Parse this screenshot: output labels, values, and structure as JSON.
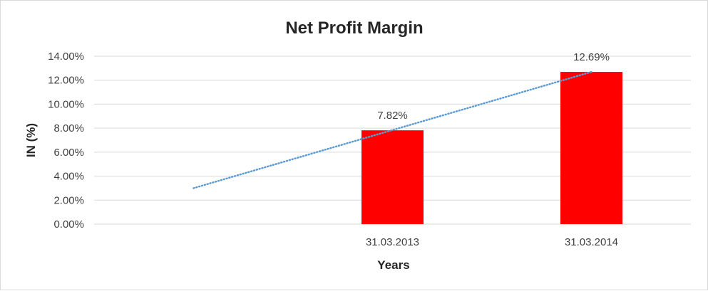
{
  "chart_data": {
    "type": "bar",
    "title": "Net Profit Margin",
    "xlabel": "Years",
    "ylabel": "IN (%)",
    "categories": [
      "",
      "31.03.2013",
      "31.03.2014"
    ],
    "values": [
      null,
      7.82,
      12.69
    ],
    "data_labels": [
      "",
      "7.82%",
      "12.69%"
    ],
    "ylim": [
      0,
      14
    ],
    "yticks": [
      0,
      2,
      4,
      6,
      8,
      10,
      12,
      14
    ],
    "ytick_labels": [
      "0.00%",
      "2.00%",
      "4.00%",
      "6.00%",
      "8.00%",
      "10.00%",
      "12.00%",
      "14.00%"
    ],
    "bar_color": "#ff0000",
    "trendline": {
      "type": "linear",
      "style": "dotted",
      "color": "#5b9bd5",
      "start": [
        0,
        3.0
      ],
      "end": [
        2,
        12.69
      ]
    },
    "grid": true,
    "legend": "none"
  }
}
